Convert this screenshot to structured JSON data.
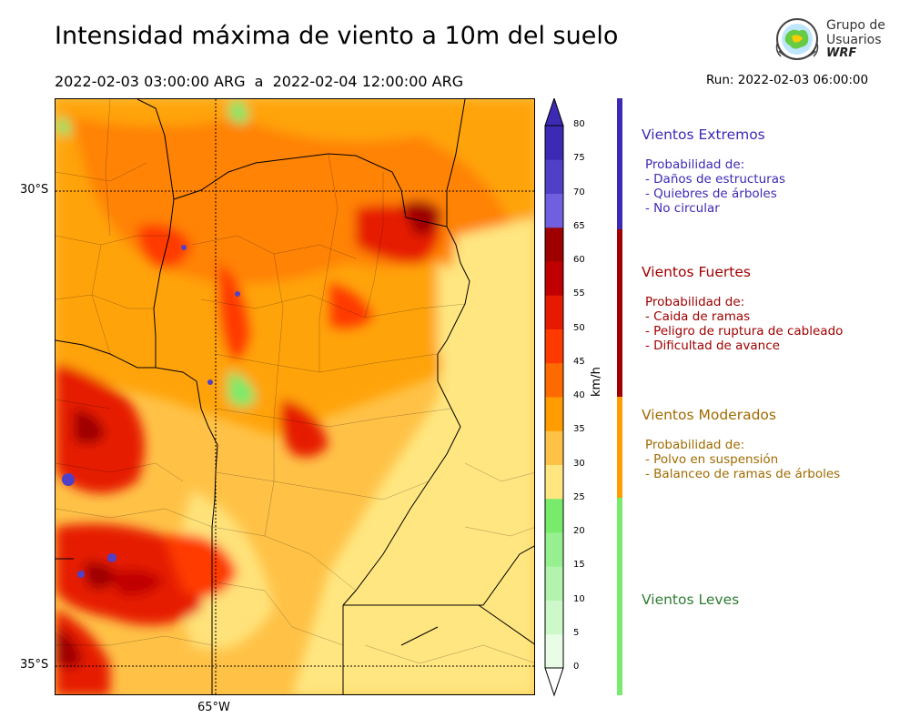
{
  "title": "Intensidad máxima de viento a 10m del suelo",
  "period": "2022-02-03 03:00:00 ARG  a  2022-02-04 12:00:00 ARG",
  "run": "Run: 2022-02-03 06:00:00",
  "logo": {
    "line1": "Grupo de",
    "line2": "Usuarios",
    "line3": "WRF"
  },
  "map": {
    "lat_labels": [
      "30°S",
      "35°S"
    ],
    "lon_labels": [
      "65°W"
    ]
  },
  "colorbar": {
    "unit": "km/h",
    "ticks": [
      "0",
      "5",
      "10",
      "15",
      "20",
      "25",
      "30",
      "35",
      "40",
      "45",
      "50",
      "55",
      "60",
      "65",
      "70",
      "75",
      "80"
    ],
    "levels": [
      0,
      5,
      10,
      15,
      20,
      25,
      30,
      35,
      40,
      45,
      50,
      55,
      60,
      65,
      70,
      75,
      80
    ],
    "colors": [
      "#e8fce6",
      "#cdf8c9",
      "#b2f4ad",
      "#97f090",
      "#78eb6c",
      "#ffe680",
      "#ffc247",
      "#ff9d00",
      "#ff6a00",
      "#ff3a00",
      "#e61a00",
      "#c00000",
      "#9e0000",
      "#7060e0",
      "#5040c8",
      "#3c2ab4"
    ]
  },
  "categories": [
    {
      "title": "Vientos Extremos",
      "color": "#3c2ab4",
      "desc": [
        "Probabilidad de:",
        "- Daños de estructuras",
        "- Quiebres de árboles",
        "- No circular"
      ]
    },
    {
      "title": "Vientos Fuertes",
      "color": "#a00000",
      "desc": [
        "Probabilidad de:",
        "- Caida de ramas",
        "- Peligro de ruptura de cableado",
        "- Dificultad de avance"
      ]
    },
    {
      "title": "Vientos Moderados",
      "color": "#a06a00",
      "bar_color": "#ff9d00",
      "desc": [
        "Probabilidad de:",
        "- Polvo en suspensión",
        "- Balanceo de ramas de árboles"
      ]
    },
    {
      "title": "Vientos Leves",
      "color": "#2e7d32",
      "bar_color": "#78eb6c",
      "desc": []
    }
  ]
}
